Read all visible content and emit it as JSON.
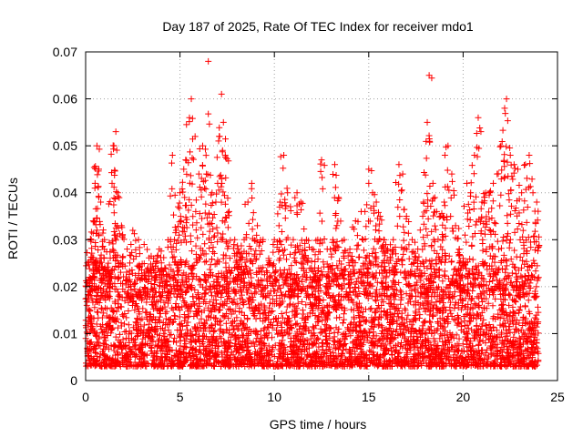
{
  "chart_data": {
    "type": "scatter",
    "title": "Day 187 of 2025, Rate Of TEC Index for receiver mdo1",
    "xlabel": "GPS time / hours",
    "ylabel": "ROTI / TECUs",
    "xlim": [
      0,
      25
    ],
    "ylim": [
      0,
      0.07
    ],
    "x_ticks": [
      0,
      5,
      10,
      15,
      20,
      25
    ],
    "x_tick_labels": [
      "0",
      "5",
      "10",
      "15",
      "20",
      "25"
    ],
    "y_ticks": [
      0,
      0.01,
      0.02,
      0.03,
      0.04,
      0.05,
      0.06,
      0.07
    ],
    "y_tick_labels": [
      "0",
      "0.01",
      "0.02",
      "0.03",
      "0.04",
      "0.05",
      "0.06",
      "0.07"
    ],
    "grid": true,
    "marker": "+",
    "color": "#ff0000",
    "series": [
      {
        "name": "ROTI",
        "points": [
          [
            0.1,
            0.01
          ],
          [
            0.2,
            0.022
          ],
          [
            0.3,
            0.03
          ],
          [
            0.4,
            0.034
          ],
          [
            0.5,
            0.042
          ],
          [
            0.6,
            0.05
          ],
          [
            0.7,
            0.045
          ],
          [
            0.8,
            0.038
          ],
          [
            1.0,
            0.03
          ],
          [
            1.2,
            0.025
          ],
          [
            1.4,
            0.042
          ],
          [
            1.5,
            0.05
          ],
          [
            1.6,
            0.053
          ],
          [
            1.7,
            0.04
          ],
          [
            1.9,
            0.033
          ],
          [
            2.2,
            0.028
          ],
          [
            2.5,
            0.032
          ],
          [
            2.8,
            0.03
          ],
          [
            3.1,
            0.029
          ],
          [
            3.3,
            0.024
          ],
          [
            3.6,
            0.026
          ],
          [
            3.9,
            0.028
          ],
          [
            4.2,
            0.024
          ],
          [
            4.5,
            0.03
          ],
          [
            4.6,
            0.048
          ],
          [
            4.8,
            0.032
          ],
          [
            4.9,
            0.037
          ],
          [
            5.0,
            0.04
          ],
          [
            5.2,
            0.045
          ],
          [
            5.3,
            0.047
          ],
          [
            5.5,
            0.056
          ],
          [
            5.6,
            0.06
          ],
          [
            5.8,
            0.052
          ],
          [
            6.0,
            0.044
          ],
          [
            6.2,
            0.05
          ],
          [
            6.4,
            0.044
          ],
          [
            6.5,
            0.068
          ],
          [
            6.7,
            0.04
          ],
          [
            6.9,
            0.038
          ],
          [
            7.1,
            0.052
          ],
          [
            7.2,
            0.061
          ],
          [
            7.3,
            0.055
          ],
          [
            7.4,
            0.048
          ],
          [
            7.6,
            0.036
          ],
          [
            7.9,
            0.03
          ],
          [
            8.1,
            0.028
          ],
          [
            8.4,
            0.03
          ],
          [
            8.6,
            0.038
          ],
          [
            8.8,
            0.042
          ],
          [
            9.1,
            0.033
          ],
          [
            9.4,
            0.03
          ],
          [
            9.7,
            0.026
          ],
          [
            10.0,
            0.03
          ],
          [
            10.3,
            0.038
          ],
          [
            10.5,
            0.048
          ],
          [
            10.7,
            0.04
          ],
          [
            11.0,
            0.03
          ],
          [
            11.2,
            0.04
          ],
          [
            11.4,
            0.038
          ],
          [
            11.7,
            0.03
          ],
          [
            12.0,
            0.028
          ],
          [
            12.3,
            0.03
          ],
          [
            12.5,
            0.047
          ],
          [
            12.8,
            0.028
          ],
          [
            13.1,
            0.03
          ],
          [
            13.2,
            0.046
          ],
          [
            13.4,
            0.039
          ],
          [
            13.7,
            0.03
          ],
          [
            14.0,
            0.028
          ],
          [
            14.3,
            0.034
          ],
          [
            14.6,
            0.036
          ],
          [
            14.8,
            0.036
          ],
          [
            15.0,
            0.045
          ],
          [
            15.2,
            0.04
          ],
          [
            15.4,
            0.038
          ],
          [
            15.6,
            0.035
          ],
          [
            15.8,
            0.03
          ],
          [
            16.0,
            0.028
          ],
          [
            16.3,
            0.03
          ],
          [
            16.6,
            0.046
          ],
          [
            16.8,
            0.044
          ],
          [
            17.0,
            0.035
          ],
          [
            17.3,
            0.03
          ],
          [
            17.6,
            0.028
          ],
          [
            17.9,
            0.038
          ],
          [
            18.1,
            0.055
          ],
          [
            18.2,
            0.065
          ],
          [
            18.4,
            0.042
          ],
          [
            18.6,
            0.036
          ],
          [
            18.8,
            0.035
          ],
          [
            19.0,
            0.038
          ],
          [
            19.2,
            0.05
          ],
          [
            19.4,
            0.044
          ],
          [
            19.6,
            0.033
          ],
          [
            19.8,
            0.028
          ],
          [
            20.0,
            0.026
          ],
          [
            20.2,
            0.042
          ],
          [
            20.4,
            0.04
          ],
          [
            20.6,
            0.048
          ],
          [
            20.8,
            0.056
          ],
          [
            21.0,
            0.038
          ],
          [
            21.2,
            0.04
          ],
          [
            21.4,
            0.04
          ],
          [
            21.6,
            0.042
          ],
          [
            21.8,
            0.044
          ],
          [
            22.0,
            0.05
          ],
          [
            22.2,
            0.058
          ],
          [
            22.3,
            0.06
          ],
          [
            22.5,
            0.048
          ],
          [
            22.7,
            0.046
          ],
          [
            22.9,
            0.045
          ],
          [
            23.1,
            0.04
          ],
          [
            23.3,
            0.046
          ],
          [
            23.5,
            0.048
          ],
          [
            23.7,
            0.04
          ],
          [
            23.9,
            0.038
          ]
        ],
        "noise_band": {
          "description": "dense background measurements",
          "x_range": [
            0,
            24
          ],
          "typical_range": [
            0.003,
            0.022
          ]
        }
      }
    ]
  }
}
